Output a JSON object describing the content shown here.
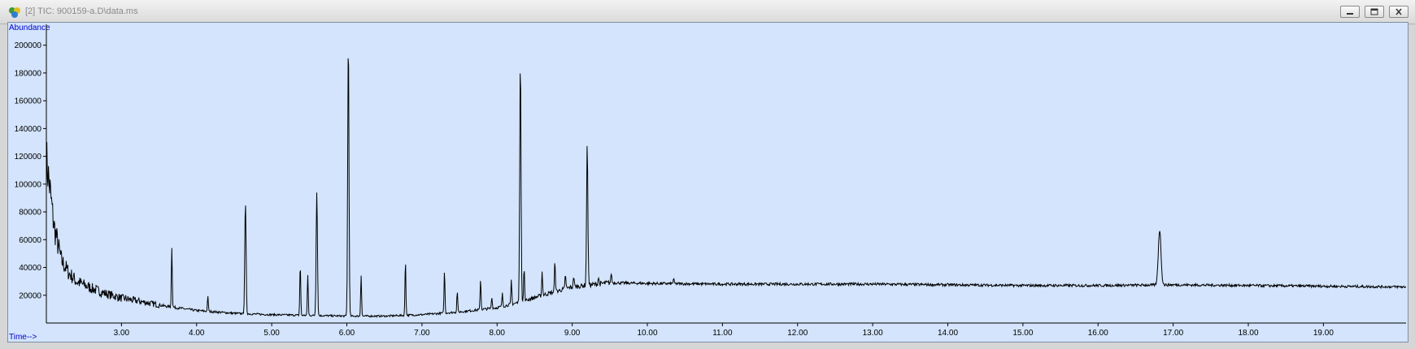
{
  "window": {
    "title": "[2] TIC: 900159-a.D\\data.ms",
    "icon": "chromatogram-app-icon",
    "controls": [
      "minimize-icon",
      "restore-icon",
      "close-icon"
    ]
  },
  "colors": {
    "plot_background": "#d3e4fc",
    "trace": "#000000",
    "axis_title": "#0000cc"
  },
  "chart_data": {
    "type": "line",
    "title": "",
    "xlabel": "Time-->",
    "ylabel": "Abundance",
    "xlim": [
      2.0,
      20.1
    ],
    "ylim": [
      0,
      215000
    ],
    "xticks": [
      3.0,
      4.0,
      5.0,
      6.0,
      7.0,
      8.0,
      9.0,
      10.0,
      11.0,
      12.0,
      13.0,
      14.0,
      15.0,
      16.0,
      17.0,
      18.0,
      19.0
    ],
    "xtick_labels": [
      "3.00",
      "4.00",
      "5.00",
      "6.00",
      "7.00",
      "8.00",
      "9.00",
      "10.00",
      "11.00",
      "12.00",
      "13.00",
      "14.00",
      "15.00",
      "16.00",
      "17.00",
      "18.00",
      "19.00"
    ],
    "yticks": [
      20000,
      40000,
      60000,
      80000,
      100000,
      120000,
      140000,
      160000,
      180000,
      200000
    ],
    "ytick_labels": [
      "20000",
      "40000",
      "60000",
      "80000",
      "100000",
      "120000",
      "140000",
      "160000",
      "180000",
      "200000"
    ],
    "grid": false,
    "legend": "none",
    "baseline": [
      [
        2.0,
        118000
      ],
      [
        2.05,
        95000
      ],
      [
        2.1,
        70000
      ],
      [
        2.2,
        45000
      ],
      [
        2.3,
        36000
      ],
      [
        2.4,
        30000
      ],
      [
        2.6,
        25000
      ],
      [
        2.8,
        21000
      ],
      [
        3.0,
        18000
      ],
      [
        3.3,
        15000
      ],
      [
        3.6,
        12000
      ],
      [
        4.0,
        9000
      ],
      [
        4.5,
        7000
      ],
      [
        5.0,
        6000
      ],
      [
        5.5,
        5500
      ],
      [
        6.0,
        5000
      ],
      [
        6.5,
        5000
      ],
      [
        7.0,
        6000
      ],
      [
        7.5,
        8000
      ],
      [
        8.0,
        11000
      ],
      [
        8.3,
        15000
      ],
      [
        8.6,
        20000
      ],
      [
        9.0,
        26000
      ],
      [
        9.5,
        29000
      ],
      [
        10.0,
        28500
      ],
      [
        11.0,
        28000
      ],
      [
        12.0,
        28000
      ],
      [
        13.0,
        28000
      ],
      [
        14.0,
        27500
      ],
      [
        15.0,
        27000
      ],
      [
        16.0,
        27000
      ],
      [
        17.0,
        27500
      ],
      [
        18.0,
        27000
      ],
      [
        19.0,
        26500
      ],
      [
        20.1,
        26000
      ]
    ],
    "peaks": [
      {
        "rt": 3.67,
        "abundance": 55000
      },
      {
        "rt": 4.15,
        "abundance": 19000
      },
      {
        "rt": 4.65,
        "abundance": 87000
      },
      {
        "rt": 5.38,
        "abundance": 43000
      },
      {
        "rt": 5.48,
        "abundance": 35000
      },
      {
        "rt": 5.6,
        "abundance": 95000
      },
      {
        "rt": 6.02,
        "abundance": 204000
      },
      {
        "rt": 6.19,
        "abundance": 35000
      },
      {
        "rt": 6.78,
        "abundance": 46000
      },
      {
        "rt": 7.3,
        "abundance": 38000
      },
      {
        "rt": 7.47,
        "abundance": 23000
      },
      {
        "rt": 7.78,
        "abundance": 32000
      },
      {
        "rt": 7.93,
        "abundance": 19000
      },
      {
        "rt": 8.07,
        "abundance": 21000
      },
      {
        "rt": 8.19,
        "abundance": 31000
      },
      {
        "rt": 8.31,
        "abundance": 188000
      },
      {
        "rt": 8.36,
        "abundance": 40000
      },
      {
        "rt": 8.6,
        "abundance": 37000
      },
      {
        "rt": 8.77,
        "abundance": 45000
      },
      {
        "rt": 8.91,
        "abundance": 35000
      },
      {
        "rt": 9.02,
        "abundance": 34000
      },
      {
        "rt": 9.2,
        "abundance": 128000
      },
      {
        "rt": 9.35,
        "abundance": 33000
      },
      {
        "rt": 9.52,
        "abundance": 36000
      },
      {
        "rt": 10.35,
        "abundance": 32000
      },
      {
        "rt": 16.82,
        "abundance": 67000
      }
    ]
  }
}
